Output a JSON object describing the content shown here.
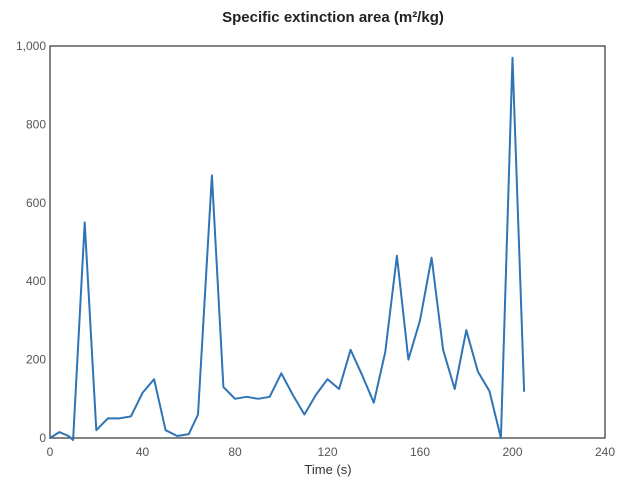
{
  "chart_data": {
    "type": "line",
    "title": "Specific extinction area (m²/kg)",
    "xlabel": "Time (s)",
    "ylabel": "",
    "xlim": [
      0,
      240
    ],
    "ylim": [
      0,
      1000
    ],
    "xticks": [
      0,
      40,
      80,
      120,
      160,
      200,
      240
    ],
    "yticks": [
      0,
      200,
      400,
      600,
      800,
      1000
    ],
    "xtick_labels": [
      "0",
      "40",
      "80",
      "120",
      "160",
      "200",
      "240"
    ],
    "ytick_labels": [
      "0",
      "200",
      "400",
      "600",
      "800",
      "1,000"
    ],
    "grid": false,
    "series": [
      {
        "color": "#2f74b5",
        "x": [
          0,
          4,
          8,
          10,
          15,
          20,
          25,
          30,
          35,
          40,
          45,
          50,
          55,
          60,
          64,
          70,
          75,
          80,
          85,
          90,
          95,
          100,
          105,
          110,
          115,
          120,
          125,
          130,
          135,
          140,
          145,
          150,
          155,
          160,
          165,
          170,
          175,
          180,
          185,
          190,
          195,
          200,
          205
        ],
        "y": [
          0,
          15,
          5,
          -5,
          550,
          20,
          50,
          50,
          55,
          115,
          150,
          20,
          5,
          10,
          60,
          670,
          130,
          100,
          105,
          100,
          105,
          165,
          110,
          60,
          110,
          150,
          125,
          225,
          160,
          90,
          220,
          465,
          200,
          300,
          460,
          225,
          125,
          275,
          170,
          120,
          0,
          970,
          120
        ]
      }
    ]
  }
}
